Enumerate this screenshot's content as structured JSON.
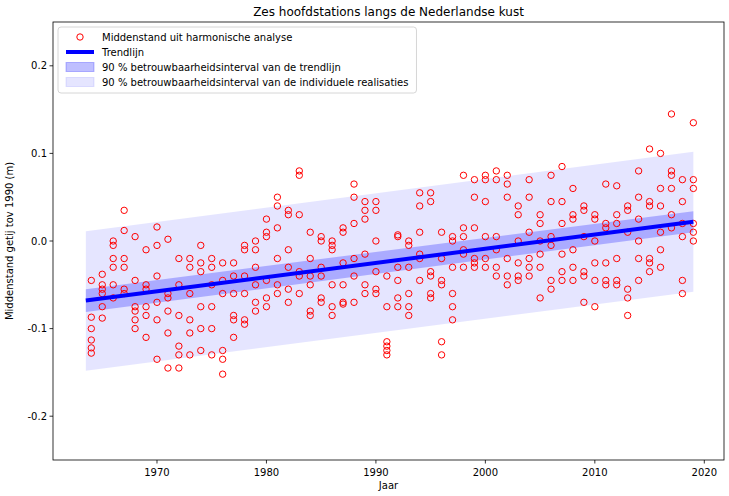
{
  "chart_data": {
    "type": "scatter",
    "title": "Zes hoofdstations langs de Nederlandse kust",
    "x_label": "Jaar",
    "y_label": "Middenstand getij tov 1990 (m)",
    "xlim": [
      1960.5,
      2021.8
    ],
    "ylim": [
      -0.25,
      0.25
    ],
    "xticks": [
      1970,
      1980,
      1990,
      2000,
      2010,
      2020
    ],
    "yticks": [
      -0.2,
      -0.1,
      {
        "value": 0,
        "label": "0.0"
      },
      0.1,
      0.2
    ],
    "grid": false,
    "legend": "upper left",
    "series": [
      {
        "name": "Middenstand uit harmonische analyse",
        "type": "scatter",
        "marker": "circle-open",
        "color": "#ff0000",
        "x": [
          1964,
          1964,
          1964,
          1964,
          1964,
          1964,
          1965,
          1965,
          1965,
          1965,
          1965,
          1965,
          1966,
          1966,
          1966,
          1966,
          1966,
          1966,
          1967,
          1967,
          1967,
          1967,
          1967,
          1967,
          1968,
          1968,
          1968,
          1968,
          1968,
          1968,
          1969,
          1969,
          1969,
          1969,
          1969,
          1969,
          1970,
          1970,
          1970,
          1970,
          1970,
          1970,
          1971,
          1971,
          1971,
          1971,
          1971,
          1971,
          1972,
          1972,
          1972,
          1972,
          1972,
          1972,
          1973,
          1973,
          1973,
          1973,
          1973,
          1973,
          1974,
          1974,
          1974,
          1974,
          1974,
          1974,
          1975,
          1975,
          1975,
          1975,
          1975,
          1975,
          1976,
          1976,
          1976,
          1976,
          1976,
          1976,
          1977,
          1977,
          1977,
          1977,
          1977,
          1977,
          1978,
          1978,
          1978,
          1978,
          1978,
          1978,
          1979,
          1979,
          1979,
          1979,
          1979,
          1979,
          1980,
          1980,
          1980,
          1980,
          1980,
          1980,
          1981,
          1981,
          1981,
          1981,
          1981,
          1981,
          1982,
          1982,
          1982,
          1982,
          1982,
          1982,
          1983,
          1983,
          1983,
          1983,
          1983,
          1983,
          1984,
          1984,
          1984,
          1984,
          1984,
          1984,
          1985,
          1985,
          1985,
          1985,
          1985,
          1985,
          1986,
          1986,
          1986,
          1986,
          1986,
          1986,
          1987,
          1987,
          1987,
          1987,
          1987,
          1987,
          1988,
          1988,
          1988,
          1988,
          1988,
          1988,
          1989,
          1989,
          1989,
          1989,
          1989,
          1989,
          1990,
          1990,
          1990,
          1990,
          1990,
          1990,
          1991,
          1991,
          1991,
          1991,
          1991,
          1991,
          1992,
          1992,
          1992,
          1992,
          1992,
          1992,
          1993,
          1993,
          1993,
          1993,
          1993,
          1993,
          1994,
          1994,
          1994,
          1994,
          1994,
          1994,
          1995,
          1995,
          1995,
          1995,
          1995,
          1995,
          1996,
          1996,
          1996,
          1996,
          1996,
          1996,
          1997,
          1997,
          1997,
          1997,
          1997,
          1997,
          1998,
          1998,
          1998,
          1998,
          1998,
          1998,
          1999,
          1999,
          1999,
          1999,
          1999,
          1999,
          2000,
          2000,
          2000,
          2000,
          2000,
          2000,
          2001,
          2001,
          2001,
          2001,
          2001,
          2001,
          2002,
          2002,
          2002,
          2002,
          2002,
          2002,
          2003,
          2003,
          2003,
          2003,
          2003,
          2003,
          2004,
          2004,
          2004,
          2004,
          2004,
          2004,
          2005,
          2005,
          2005,
          2005,
          2005,
          2005,
          2006,
          2006,
          2006,
          2006,
          2006,
          2006,
          2007,
          2007,
          2007,
          2007,
          2007,
          2007,
          2008,
          2008,
          2008,
          2008,
          2008,
          2008,
          2009,
          2009,
          2009,
          2009,
          2009,
          2009,
          2010,
          2010,
          2010,
          2010,
          2010,
          2010,
          2011,
          2011,
          2011,
          2011,
          2011,
          2011,
          2012,
          2012,
          2012,
          2012,
          2012,
          2012,
          2013,
          2013,
          2013,
          2013,
          2013,
          2013,
          2014,
          2014,
          2014,
          2014,
          2014,
          2014,
          2015,
          2015,
          2015,
          2015,
          2015,
          2015,
          2016,
          2016,
          2016,
          2016,
          2016,
          2016,
          2017,
          2017,
          2017,
          2017,
          2017,
          2017,
          2018,
          2018,
          2018,
          2018,
          2018,
          2018,
          2019,
          2019,
          2019,
          2019,
          2019,
          2019
        ],
        "values": [
          -0.045,
          -0.087,
          -0.1,
          -0.113,
          -0.122,
          -0.128,
          -0.038,
          -0.05,
          -0.06,
          -0.075,
          -0.088,
          -0.055,
          0.0,
          -0.005,
          -0.02,
          -0.03,
          -0.05,
          -0.065,
          0.035,
          0.012,
          -0.02,
          -0.03,
          -0.055,
          -0.06,
          0.005,
          -0.045,
          -0.075,
          -0.08,
          -0.09,
          -0.1,
          -0.01,
          -0.05,
          -0.055,
          -0.085,
          -0.11,
          -0.075,
          0.016,
          -0.005,
          -0.04,
          -0.07,
          -0.09,
          -0.135,
          0.002,
          -0.06,
          -0.08,
          -0.105,
          -0.145,
          -0.065,
          -0.02,
          -0.05,
          -0.085,
          -0.12,
          -0.13,
          -0.145,
          -0.02,
          -0.03,
          -0.06,
          -0.105,
          -0.13,
          -0.09,
          -0.005,
          -0.025,
          -0.075,
          -0.1,
          -0.125,
          -0.035,
          -0.02,
          -0.03,
          -0.05,
          -0.075,
          -0.1,
          -0.13,
          -0.025,
          -0.045,
          -0.06,
          -0.125,
          -0.135,
          -0.152,
          -0.025,
          -0.04,
          -0.06,
          -0.085,
          -0.09,
          -0.11,
          -0.005,
          -0.01,
          -0.04,
          -0.06,
          -0.09,
          -0.095,
          0.0,
          -0.01,
          -0.03,
          -0.05,
          -0.07,
          -0.08,
          0.025,
          0.01,
          0.005,
          -0.045,
          -0.065,
          -0.075,
          0.05,
          0.04,
          0.015,
          -0.02,
          -0.05,
          -0.06,
          0.035,
          0.03,
          -0.01,
          -0.03,
          -0.055,
          -0.07,
          0.08,
          0.075,
          0.03,
          -0.035,
          -0.04,
          -0.06,
          0.01,
          -0.02,
          -0.04,
          -0.05,
          -0.08,
          -0.085,
          0.005,
          0.0,
          -0.03,
          -0.04,
          -0.065,
          -0.07,
          0.0,
          -0.005,
          -0.01,
          -0.05,
          -0.075,
          -0.085,
          0.015,
          0.01,
          -0.025,
          -0.05,
          -0.07,
          -0.072,
          0.065,
          0.05,
          0.02,
          -0.02,
          -0.04,
          -0.07,
          0.045,
          0.035,
          0.025,
          -0.015,
          -0.05,
          -0.06,
          0.045,
          0.035,
          0.0,
          -0.035,
          -0.055,
          -0.06,
          -0.04,
          -0.075,
          -0.115,
          -0.12,
          -0.125,
          -0.13,
          0.005,
          0.007,
          -0.03,
          -0.045,
          -0.065,
          -0.075,
          0.0,
          -0.005,
          -0.03,
          -0.06,
          -0.075,
          -0.085,
          0.055,
          0.04,
          0.01,
          -0.015,
          -0.02,
          -0.045,
          0.055,
          0.045,
          -0.035,
          -0.04,
          -0.06,
          -0.065,
          0.01,
          -0.02,
          -0.045,
          -0.05,
          -0.115,
          -0.13,
          0.005,
          0.0,
          -0.03,
          -0.06,
          -0.075,
          -0.09,
          0.075,
          0.015,
          0.005,
          -0.01,
          -0.015,
          -0.03,
          0.07,
          0.05,
          0.015,
          -0.025,
          -0.03,
          -0.02,
          0.075,
          0.07,
          0.045,
          0.005,
          -0.02,
          -0.03,
          0.07,
          0.08,
          0.005,
          -0.01,
          -0.03,
          -0.04,
          0.075,
          0.065,
          0.05,
          -0.02,
          -0.04,
          -0.05,
          0.04,
          0.03,
          0.0,
          -0.025,
          -0.04,
          -0.045,
          0.07,
          0.05,
          0.01,
          -0.02,
          -0.03,
          -0.04,
          0.03,
          0.02,
          0.0,
          -0.015,
          -0.03,
          -0.065,
          0.075,
          0.045,
          0.005,
          -0.005,
          -0.045,
          -0.055,
          0.085,
          0.045,
          0.02,
          -0.015,
          -0.035,
          -0.045,
          0.06,
          0.03,
          0.025,
          -0.01,
          -0.03,
          -0.045,
          0.04,
          0.035,
          0.005,
          -0.035,
          -0.04,
          -0.07,
          0.03,
          0.025,
          0.0,
          -0.025,
          -0.045,
          -0.075,
          0.065,
          0.02,
          0.015,
          -0.025,
          -0.045,
          -0.05,
          0.063,
          0.03,
          0.02,
          -0.02,
          -0.045,
          -0.05,
          0.04,
          0.035,
          0.01,
          -0.055,
          -0.065,
          -0.085,
          0.08,
          0.05,
          0.025,
          0.0,
          -0.02,
          -0.045,
          0.105,
          0.045,
          0.04,
          -0.02,
          -0.025,
          -0.035,
          0.1,
          0.06,
          0.04,
          0.01,
          -0.01,
          -0.03,
          0.145,
          0.08,
          0.075,
          0.06,
          0.03,
          0.015,
          0.07,
          0.045,
          0.02,
          0.005,
          -0.045,
          -0.06,
          0.135,
          0.07,
          0.06,
          0.02,
          0.01,
          0.0
        ]
      },
      {
        "name": "Trendlijn",
        "type": "line",
        "line_style": "solid",
        "color": "#0000ff",
        "x": [
          1963.5,
          2019
        ],
        "values": [
          -0.068,
          0.022
        ]
      },
      {
        "name": "90 % betrouwbaarheidsinterval van de trendlijn",
        "type": "band",
        "color": "#0000ff",
        "x": [
          1963.5,
          2019
        ],
        "lower": [
          -0.081,
          0.01
        ],
        "upper": [
          -0.055,
          0.034
        ]
      },
      {
        "name": "90 % betrouwbaarheidsinterval van de individuele realisaties",
        "type": "band",
        "color": "#0000ff",
        "x": [
          1963.5,
          2019
        ],
        "lower": [
          -0.148,
          -0.058
        ],
        "upper": [
          0.011,
          0.102
        ]
      }
    ]
  }
}
